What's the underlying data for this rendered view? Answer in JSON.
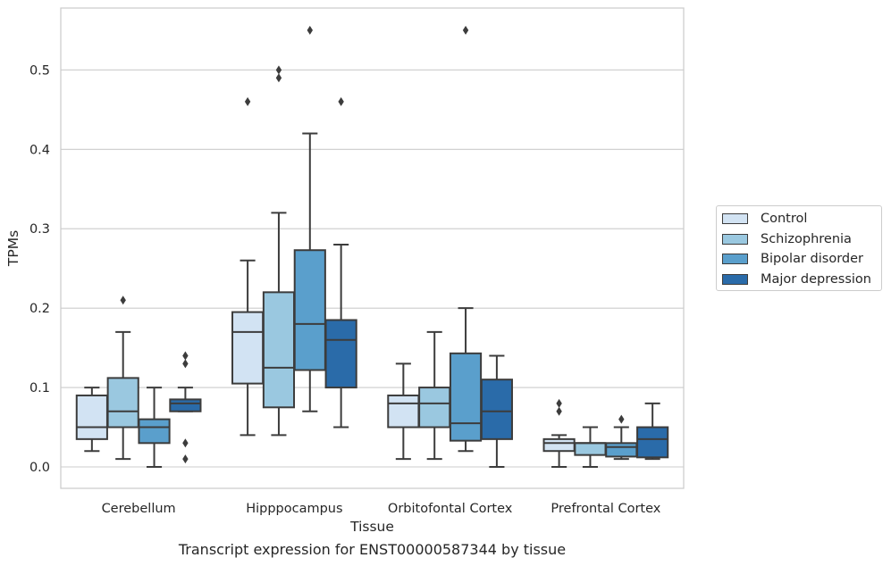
{
  "caption": "Transcript expression for ENST00000587344 by tissue",
  "chart_data": {
    "type": "box",
    "xlabel": "Tissue",
    "ylabel": "TPMs",
    "ylim": [
      -0.027,
      0.578
    ],
    "yticks": [
      0.0,
      0.1,
      0.2,
      0.3,
      0.4,
      0.5
    ],
    "ytick_labels": [
      "0.0",
      "0.1",
      "0.2",
      "0.3",
      "0.4",
      "0.5"
    ],
    "grid": "horizontal",
    "legend_position": "right",
    "categories": [
      "Cerebellum",
      "Hipppocampus",
      "Orbitofontal Cortex",
      "Prefrontal Cortex"
    ],
    "series": [
      {
        "name": "Control",
        "color": "#d2e3f3",
        "boxes": [
          {
            "whisker_low": 0.02,
            "q1": 0.035,
            "median": 0.05,
            "q3": 0.09,
            "whisker_high": 0.1,
            "outliers": []
          },
          {
            "whisker_low": 0.04,
            "q1": 0.105,
            "median": 0.17,
            "q3": 0.195,
            "whisker_high": 0.26,
            "outliers": [
              0.46
            ]
          },
          {
            "whisker_low": 0.01,
            "q1": 0.05,
            "median": 0.08,
            "q3": 0.09,
            "whisker_high": 0.13,
            "outliers": []
          },
          {
            "whisker_low": 0.0,
            "q1": 0.02,
            "median": 0.03,
            "q3": 0.035,
            "whisker_high": 0.04,
            "outliers": [
              0.07,
              0.08
            ]
          }
        ]
      },
      {
        "name": "Schizophrenia",
        "color": "#9ac8e0",
        "boxes": [
          {
            "whisker_low": 0.01,
            "q1": 0.05,
            "median": 0.07,
            "q3": 0.112,
            "whisker_high": 0.17,
            "outliers": [
              0.21
            ]
          },
          {
            "whisker_low": 0.04,
            "q1": 0.075,
            "median": 0.125,
            "q3": 0.22,
            "whisker_high": 0.32,
            "outliers": [
              0.49,
              0.5
            ]
          },
          {
            "whisker_low": 0.01,
            "q1": 0.05,
            "median": 0.08,
            "q3": 0.1,
            "whisker_high": 0.17,
            "outliers": []
          },
          {
            "whisker_low": 0.0,
            "q1": 0.015,
            "median": 0.03,
            "q3": 0.03,
            "whisker_high": 0.05,
            "outliers": []
          }
        ]
      },
      {
        "name": "Bipolar disorder",
        "color": "#5a9fcc",
        "boxes": [
          {
            "whisker_low": 0.0,
            "q1": 0.03,
            "median": 0.05,
            "q3": 0.06,
            "whisker_high": 0.1,
            "outliers": []
          },
          {
            "whisker_low": 0.07,
            "q1": 0.122,
            "median": 0.18,
            "q3": 0.273,
            "whisker_high": 0.42,
            "outliers": [
              0.55
            ]
          },
          {
            "whisker_low": 0.02,
            "q1": 0.033,
            "median": 0.055,
            "q3": 0.143,
            "whisker_high": 0.2,
            "outliers": [
              0.55
            ]
          },
          {
            "whisker_low": 0.01,
            "q1": 0.013,
            "median": 0.025,
            "q3": 0.03,
            "whisker_high": 0.05,
            "outliers": [
              0.06
            ]
          }
        ]
      },
      {
        "name": "Major depression",
        "color": "#2a6ba9",
        "boxes": [
          {
            "whisker_low": 0.07,
            "q1": 0.07,
            "median": 0.08,
            "q3": 0.085,
            "whisker_high": 0.1,
            "outliers": [
              0.01,
              0.03,
              0.13,
              0.14
            ]
          },
          {
            "whisker_low": 0.05,
            "q1": 0.1,
            "median": 0.16,
            "q3": 0.185,
            "whisker_high": 0.28,
            "outliers": [
              0.46
            ]
          },
          {
            "whisker_low": 0.0,
            "q1": 0.035,
            "median": 0.07,
            "q3": 0.11,
            "whisker_high": 0.14,
            "outliers": []
          },
          {
            "whisker_low": 0.01,
            "q1": 0.012,
            "median": 0.035,
            "q3": 0.05,
            "whisker_high": 0.08,
            "outliers": []
          }
        ]
      }
    ]
  }
}
